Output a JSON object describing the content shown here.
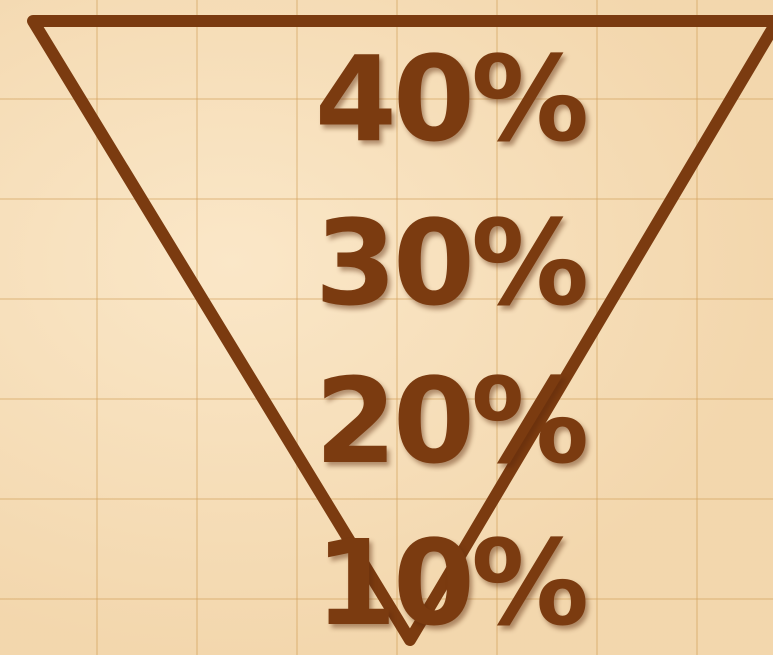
{
  "diagram": {
    "shape": "inverted-triangle",
    "colors": {
      "background": "#f5dcb5",
      "grid": "#d2a05a",
      "stroke": "#7b3b10",
      "text": "#7b3b10"
    },
    "levels": [
      {
        "label": "40%",
        "value": 40
      },
      {
        "label": "30%",
        "value": 30
      },
      {
        "label": "20%",
        "value": 20
      },
      {
        "label": "10%",
        "value": 10
      }
    ]
  }
}
